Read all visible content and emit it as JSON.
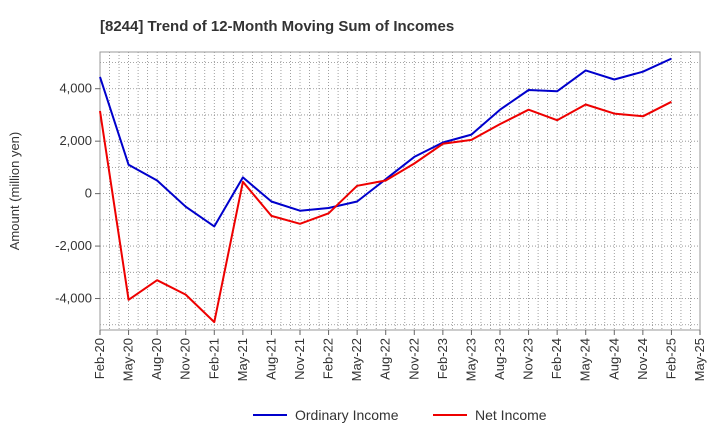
{
  "chart_data": {
    "type": "line",
    "title": "[8244]  Trend of 12-Month Moving Sum of Incomes",
    "xlabel": "",
    "ylabel": "Amount (million yen)",
    "ylim": [
      -5200,
      5400
    ],
    "yticks": [
      4000,
      2000,
      0,
      -2000,
      -4000
    ],
    "ytick_labels": [
      "4,000",
      "2,000",
      "0",
      "-2,000",
      "-4,000"
    ],
    "grid": true,
    "legend_position": "bottom-center",
    "categories": [
      "Feb-20",
      "May-20",
      "Aug-20",
      "Nov-20",
      "Feb-21",
      "May-21",
      "Aug-21",
      "Nov-21",
      "Feb-22",
      "May-22",
      "Aug-22",
      "Nov-22",
      "Feb-23",
      "May-23",
      "Aug-23",
      "Nov-23",
      "Feb-24",
      "May-24",
      "Aug-24",
      "Nov-24",
      "Feb-25",
      "May-25"
    ],
    "series": [
      {
        "name": "Ordinary Income",
        "color": "#0000cc",
        "values": [
          4450,
          1100,
          500,
          -500,
          -1250,
          620,
          -300,
          -650,
          -550,
          -300,
          550,
          1400,
          1950,
          2250,
          3200,
          3950,
          3900,
          4700,
          4350,
          4650,
          5150,
          null
        ]
      },
      {
        "name": "Net Income",
        "color": "#ee0000",
        "values": [
          3150,
          -4050,
          -3300,
          -3850,
          -4900,
          450,
          -850,
          -1150,
          -750,
          300,
          500,
          1150,
          1900,
          2050,
          2650,
          3200,
          2800,
          3400,
          3050,
          2950,
          3500,
          null
        ]
      }
    ]
  }
}
